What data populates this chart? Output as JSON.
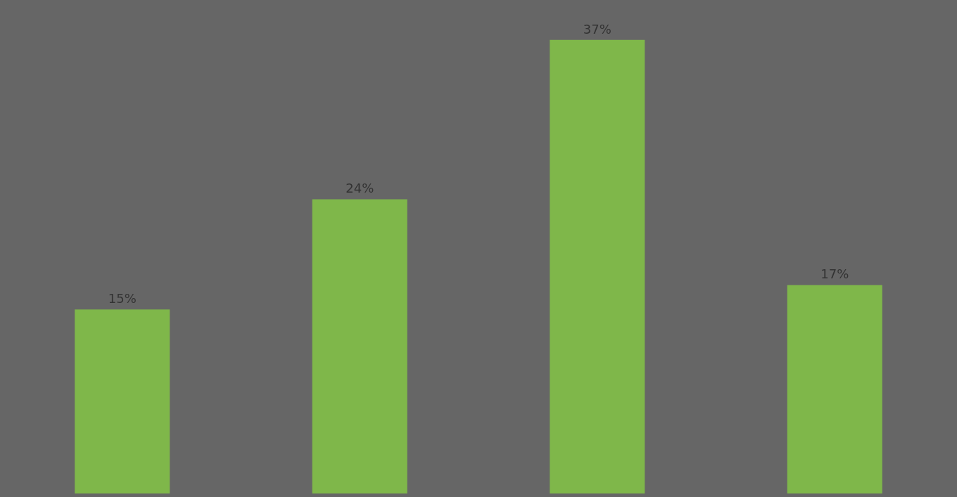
{
  "chart_data": {
    "type": "bar",
    "categories": [
      null,
      null,
      null,
      null
    ],
    "values": [
      15,
      24,
      37,
      17
    ],
    "value_labels": [
      "15%",
      "24%",
      "37%",
      "17%"
    ],
    "color": "#7fb74a"
  }
}
